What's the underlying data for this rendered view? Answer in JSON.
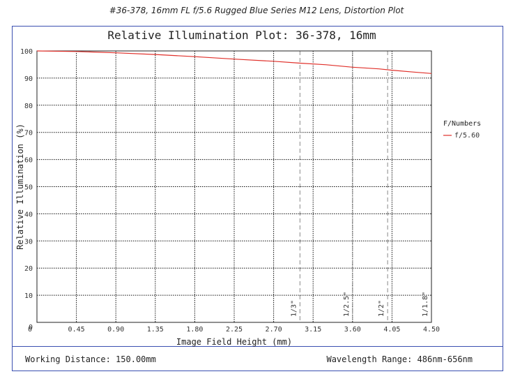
{
  "page_caption": "#36-378, 16mm FL f/5.6 Rugged Blue Series M12 Lens, Distortion Plot",
  "footer": {
    "working_distance": "Working Distance: 150.00mm",
    "wavelength_range": "Wavelength Range: 486nm-656nm"
  },
  "chart_data": {
    "type": "line",
    "title": "Relative Illumination Plot: 36-378, 16mm",
    "xlabel": "Image Field Height (mm)",
    "ylabel": "Relative Illumination (%)",
    "xlim": [
      0,
      4.5
    ],
    "ylim": [
      0,
      100
    ],
    "x_ticks": [
      "0",
      "0.45",
      "0.90",
      "1.35",
      "1.80",
      "2.25",
      "2.70",
      "3.15",
      "3.60",
      "4.05",
      "4.50"
    ],
    "y_ticks": [
      "0",
      "10",
      "20",
      "30",
      "40",
      "50",
      "60",
      "70",
      "80",
      "90",
      "100"
    ],
    "grid": true,
    "legend": {
      "title": "F/Numbers",
      "placement": "right"
    },
    "series": [
      {
        "name": "f/5.60",
        "color": "#e0302a",
        "x": [
          0,
          0.45,
          0.9,
          1.35,
          1.8,
          2.25,
          2.7,
          3.0,
          3.3,
          3.6,
          3.9,
          4.05,
          4.3,
          4.5
        ],
        "y": [
          100,
          99.8,
          99.3,
          98.7,
          97.9,
          97.0,
          96.2,
          95.5,
          94.9,
          94.0,
          93.4,
          92.9,
          92.2,
          91.7
        ]
      }
    ],
    "sensor_markers": [
      {
        "label": "1/3\"",
        "x": 3.0
      },
      {
        "label": "1/2.5\"",
        "x": 3.6
      },
      {
        "label": "1/2\"",
        "x": 4.0
      },
      {
        "label": "1/1.8\"",
        "x": 4.5
      }
    ]
  }
}
